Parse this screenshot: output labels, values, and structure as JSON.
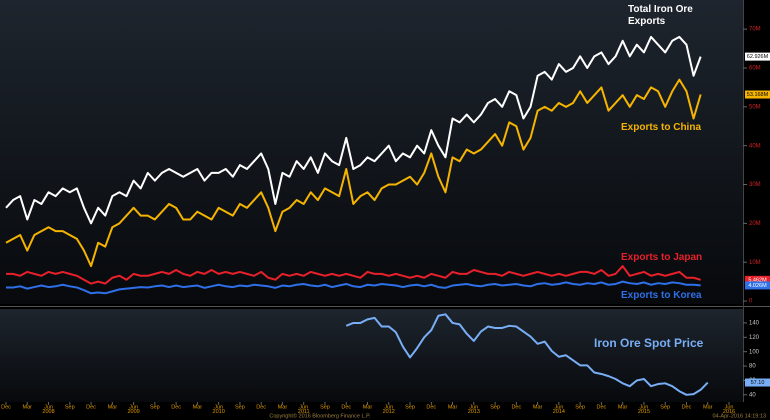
{
  "chart_data": [
    {
      "type": "line",
      "x": [
        "2007-12",
        "2008-01",
        "2008-02",
        "2008-03",
        "2008-04",
        "2008-05",
        "2008-06",
        "2008-07",
        "2008-08",
        "2008-09",
        "2008-10",
        "2008-11",
        "2008-12",
        "2009-01",
        "2009-02",
        "2009-03",
        "2009-04",
        "2009-05",
        "2009-06",
        "2009-07",
        "2009-08",
        "2009-09",
        "2009-10",
        "2009-11",
        "2009-12",
        "2010-01",
        "2010-02",
        "2010-03",
        "2010-04",
        "2010-05",
        "2010-06",
        "2010-07",
        "2010-08",
        "2010-09",
        "2010-10",
        "2010-11",
        "2010-12",
        "2011-01",
        "2011-02",
        "2011-03",
        "2011-04",
        "2011-05",
        "2011-06",
        "2011-07",
        "2011-08",
        "2011-09",
        "2011-10",
        "2011-11",
        "2011-12",
        "2012-01",
        "2012-02",
        "2012-03",
        "2012-04",
        "2012-05",
        "2012-06",
        "2012-07",
        "2012-08",
        "2012-09",
        "2012-10",
        "2012-11",
        "2012-12",
        "2013-01",
        "2013-02",
        "2013-03",
        "2013-04",
        "2013-05",
        "2013-06",
        "2013-07",
        "2013-08",
        "2013-09",
        "2013-10",
        "2013-11",
        "2013-12",
        "2014-01",
        "2014-02",
        "2014-03",
        "2014-04",
        "2014-05",
        "2014-06",
        "2014-07",
        "2014-08",
        "2014-09",
        "2014-10",
        "2014-11",
        "2014-12",
        "2015-01",
        "2015-02",
        "2015-03",
        "2015-04",
        "2015-05",
        "2015-06",
        "2015-07",
        "2015-08",
        "2015-09",
        "2015-10",
        "2015-11",
        "2015-12",
        "2016-01",
        "2016-02"
      ],
      "xlim": [
        "2007-12",
        "2016-06"
      ],
      "ylim": [
        -0.5,
        77.5
      ],
      "yticks": [
        0,
        {
          "value": 10,
          "label": "10M"
        },
        {
          "value": 20,
          "label": "20M"
        },
        {
          "value": 30,
          "label": "30M"
        },
        {
          "value": 40,
          "label": "40M"
        },
        {
          "value": 50,
          "label": "50M"
        },
        {
          "value": 60,
          "label": "60M"
        },
        {
          "value": 70,
          "label": "70M"
        }
      ],
      "series": [
        {
          "name": "Total Iron Ore Exports",
          "color": "#ffffff",
          "end_label": "62.926M",
          "values": [
            24,
            26,
            27,
            21,
            26,
            25,
            28,
            27,
            29,
            28,
            29,
            24,
            20,
            24,
            22,
            27,
            28,
            27,
            31,
            29,
            33,
            31,
            33,
            34,
            33,
            32,
            33,
            34,
            31,
            33,
            33,
            34,
            32,
            35,
            34,
            36,
            38,
            34,
            25,
            33,
            32,
            36,
            34,
            37,
            33,
            38,
            36,
            35,
            42,
            34,
            35,
            37,
            36,
            38,
            40,
            36,
            38,
            37,
            40,
            38,
            44,
            40,
            37,
            47,
            46,
            48,
            46,
            48,
            51,
            52,
            50,
            54,
            53,
            47,
            50,
            58,
            59,
            57,
            61,
            59,
            60,
            63,
            60,
            63,
            64,
            61,
            63,
            67,
            63,
            66,
            64,
            68,
            66,
            64,
            67,
            68,
            66,
            58,
            62.926
          ]
        },
        {
          "name": "Exports to China",
          "color": "#f5b400",
          "end_label": "53.168M",
          "values": [
            15,
            16,
            17,
            13,
            17,
            18,
            19,
            18,
            18,
            17,
            16,
            13,
            9,
            15,
            14,
            19,
            20,
            22,
            24,
            22,
            22,
            21,
            23,
            25,
            24,
            21,
            21,
            23,
            22,
            21,
            24,
            23,
            22,
            25,
            24,
            26,
            28,
            24,
            18,
            23,
            24,
            26,
            25,
            28,
            26,
            29,
            28,
            27,
            34,
            25,
            27,
            28,
            26,
            29,
            30,
            30,
            31,
            32,
            30,
            33,
            38,
            32,
            28,
            37,
            36,
            39,
            38,
            39,
            41,
            43,
            40,
            46,
            45,
            39,
            42,
            49,
            50,
            49,
            51,
            50,
            51,
            54,
            51,
            53,
            55,
            49,
            51,
            53,
            50,
            53,
            52,
            55,
            54,
            50,
            54,
            57,
            54,
            47,
            53.168
          ]
        },
        {
          "name": "Exports to Japan",
          "color": "#e8202a",
          "end_label": "5.462M",
          "values": [
            7,
            7,
            6.5,
            7.5,
            7,
            6.5,
            7.5,
            7,
            7.5,
            7,
            6.5,
            5.5,
            4.5,
            5,
            4.5,
            6,
            6.5,
            5.5,
            7,
            6.5,
            6.5,
            7,
            7.5,
            7,
            8,
            7,
            6.5,
            7.5,
            7,
            8,
            7,
            7.5,
            7,
            7.5,
            7,
            6.5,
            7.5,
            6,
            5.5,
            7,
            6.5,
            7,
            6.5,
            7.5,
            7,
            6.5,
            7,
            6.5,
            7,
            6.5,
            6,
            7.5,
            7,
            7,
            6.5,
            7,
            6.5,
            6,
            6.5,
            6,
            7,
            6.5,
            6,
            7.5,
            7,
            7,
            8,
            7.5,
            7,
            7,
            6.5,
            7.5,
            7,
            6.5,
            7,
            7.5,
            7,
            6.5,
            7,
            6.5,
            7,
            7.5,
            7.5,
            7,
            8,
            6.5,
            7,
            9,
            6.5,
            7,
            7.5,
            6.5,
            7,
            6.5,
            7,
            7.5,
            6,
            6,
            5.462
          ]
        },
        {
          "name": "Exports to Korea",
          "color": "#2f6fe8",
          "end_label": "4.026M",
          "values": [
            3.5,
            3.5,
            3.8,
            3.2,
            3.6,
            4,
            3.6,
            3.8,
            4.2,
            3.8,
            3.5,
            2.8,
            2,
            2.2,
            2,
            2.5,
            3,
            3.2,
            3.4,
            3.6,
            3.5,
            3.8,
            4,
            3.6,
            4,
            3.6,
            3.8,
            4,
            3.4,
            3.8,
            4.2,
            3.8,
            3.6,
            4,
            3.8,
            4.2,
            4,
            3.8,
            3.4,
            4,
            3.8,
            4.2,
            4.4,
            4,
            3.8,
            4.2,
            3.6,
            4,
            4.4,
            3.8,
            3.6,
            4.2,
            4,
            4.4,
            4.2,
            4,
            3.6,
            4,
            4.2,
            3.8,
            4.2,
            3.6,
            3.4,
            4,
            4.2,
            4.4,
            4,
            3.8,
            4.2,
            4.4,
            4,
            4.2,
            4.4,
            4,
            3.8,
            4.4,
            4.6,
            4.2,
            4.4,
            4.8,
            4.4,
            4.2,
            4.6,
            4.4,
            4.8,
            4.2,
            4.4,
            5,
            4.6,
            4.4,
            4.8,
            4.2,
            4.6,
            4.4,
            4.8,
            4.6,
            4.2,
            4.2,
            4.026
          ]
        }
      ]
    },
    {
      "type": "line",
      "x": [
        "2011-12",
        "2012-01",
        "2012-02",
        "2012-03",
        "2012-04",
        "2012-05",
        "2012-06",
        "2012-07",
        "2012-08",
        "2012-09",
        "2012-10",
        "2012-11",
        "2012-12",
        "2013-01",
        "2013-02",
        "2013-03",
        "2013-04",
        "2013-05",
        "2013-06",
        "2013-07",
        "2013-08",
        "2013-09",
        "2013-10",
        "2013-11",
        "2013-12",
        "2014-01",
        "2014-02",
        "2014-03",
        "2014-04",
        "2014-05",
        "2014-06",
        "2014-07",
        "2014-08",
        "2014-09",
        "2014-10",
        "2014-11",
        "2014-12",
        "2015-01",
        "2015-02",
        "2015-03",
        "2015-04",
        "2015-05",
        "2015-06",
        "2015-07",
        "2015-08",
        "2015-09",
        "2015-10",
        "2015-11",
        "2015-12",
        "2016-01",
        "2016-02",
        "2016-03"
      ],
      "xlim": [
        "2007-12",
        "2016-06"
      ],
      "ylim": [
        30,
        158
      ],
      "yticks": [
        40,
        60,
        80,
        100,
        120,
        140
      ],
      "xticks": [
        {
          "value": "2007-12",
          "label": "Dec"
        },
        {
          "value": "2008-03",
          "label": "Mar"
        },
        {
          "value": "2008-06",
          "label": "Jun"
        },
        {
          "value": "2008-09",
          "label": "Sep"
        },
        {
          "value": "2008-12",
          "label": "Dec"
        },
        {
          "value": "2009-03",
          "label": "Mar"
        },
        {
          "value": "2009-06",
          "label": "Jun"
        },
        {
          "value": "2009-09",
          "label": "Sep"
        },
        {
          "value": "2009-12",
          "label": "Dec"
        },
        {
          "value": "2010-03",
          "label": "Mar"
        },
        {
          "value": "2010-06",
          "label": "Jun"
        },
        {
          "value": "2010-09",
          "label": "Sep"
        },
        {
          "value": "2010-12",
          "label": "Dec"
        },
        {
          "value": "2011-03",
          "label": "Mar"
        },
        {
          "value": "2011-06",
          "label": "Jun"
        },
        {
          "value": "2011-09",
          "label": "Sep"
        },
        {
          "value": "2011-12",
          "label": "Dec"
        },
        {
          "value": "2012-03",
          "label": "Mar"
        },
        {
          "value": "2012-06",
          "label": "Jun"
        },
        {
          "value": "2012-09",
          "label": "Sep"
        },
        {
          "value": "2012-12",
          "label": "Dec"
        },
        {
          "value": "2013-03",
          "label": "Mar"
        },
        {
          "value": "2013-06",
          "label": "Jun"
        },
        {
          "value": "2013-09",
          "label": "Sep"
        },
        {
          "value": "2013-12",
          "label": "Dec"
        },
        {
          "value": "2014-03",
          "label": "Mar"
        },
        {
          "value": "2014-06",
          "label": "Jun"
        },
        {
          "value": "2014-09",
          "label": "Sep"
        },
        {
          "value": "2014-12",
          "label": "Dec"
        },
        {
          "value": "2015-03",
          "label": "Mar"
        },
        {
          "value": "2015-06",
          "label": "Jun"
        },
        {
          "value": "2015-09",
          "label": "Sep"
        },
        {
          "value": "2015-12",
          "label": "Dec"
        },
        {
          "value": "2016-03",
          "label": "Mar"
        },
        {
          "value": "2016-06",
          "label": "Jun"
        }
      ],
      "year_labels": [
        {
          "value": "2008-06",
          "label": "2008"
        },
        {
          "value": "2009-06",
          "label": "2009"
        },
        {
          "value": "2010-06",
          "label": "2010"
        },
        {
          "value": "2011-06",
          "label": "2011"
        },
        {
          "value": "2012-06",
          "label": "2012"
        },
        {
          "value": "2013-06",
          "label": "2013"
        },
        {
          "value": "2014-06",
          "label": "2014"
        },
        {
          "value": "2015-06",
          "label": "2015"
        },
        {
          "value": "2016-06",
          "label": "2016"
        }
      ],
      "series": [
        {
          "name": "Iron Ore Spot Price",
          "color": "#78aef5",
          "end_label": "57.10",
          "values": [
            136,
            140,
            140,
            145,
            147,
            135,
            135,
            127,
            107,
            92,
            105,
            120,
            130,
            150,
            152,
            140,
            138,
            125,
            115,
            128,
            135,
            133,
            133,
            136,
            135,
            128,
            121,
            111,
            114,
            101,
            93,
            95,
            88,
            81,
            81,
            71,
            69,
            66,
            62,
            56,
            52,
            60,
            62,
            52,
            55,
            56,
            52,
            45,
            40,
            41,
            47,
            57.1
          ]
        }
      ]
    }
  ],
  "footer": {
    "copyright": "Copyright© 2016 Bloomberg Finance L.P.",
    "timestamp": "04-Apr-2016 14:19:13"
  }
}
